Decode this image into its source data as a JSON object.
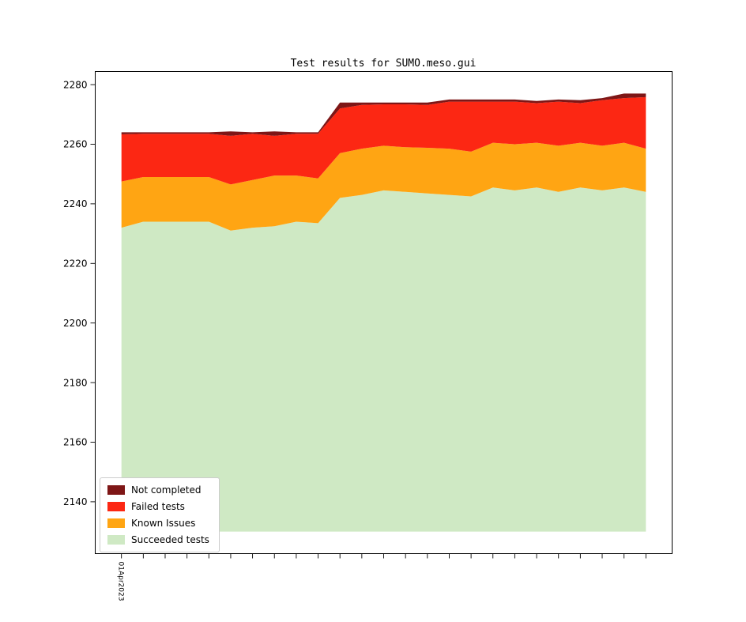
{
  "chart_data": {
    "type": "area",
    "title": "Test results for SUMO.meso.gui",
    "x_tick_label": "01Apr2023",
    "x_count": 25,
    "xlim": [
      -1.2,
      25.2
    ],
    "ylim": [
      2122.6,
      2284.4
    ],
    "yticks": [
      2140,
      2160,
      2180,
      2200,
      2220,
      2240,
      2260,
      2280
    ],
    "baseline": 2130,
    "grid": false,
    "legend_position": "lower left",
    "series": [
      {
        "name": "Not completed",
        "color": "#7e1616",
        "top": [
          2264,
          2264,
          2264,
          2264,
          2264,
          2264.3,
          2264,
          2264.3,
          2264,
          2264,
          2274,
          2274,
          2274,
          2274,
          2274,
          2275,
          2275,
          2275,
          2275,
          2274.5,
          2275,
          2274.8,
          2275.5,
          2277,
          2277
        ]
      },
      {
        "name": "Failed tests",
        "color": "#fc2713",
        "top": [
          2263.3,
          2263.5,
          2263.5,
          2263.5,
          2263.5,
          2262.8,
          2263.5,
          2262.8,
          2263.5,
          2263.5,
          2272,
          2273.2,
          2273.4,
          2273.4,
          2273.2,
          2274.3,
          2274.3,
          2274.3,
          2274.3,
          2273.8,
          2274.3,
          2273.8,
          2274.8,
          2275.5,
          2275.8
        ]
      },
      {
        "name": "Known Issues",
        "color": "#ffa513",
        "top": [
          2247.5,
          2249,
          2249,
          2249,
          2249,
          2246.5,
          2248,
          2249.5,
          2249.5,
          2248.5,
          2257,
          2258.5,
          2259.5,
          2259,
          2258.8,
          2258.5,
          2257.5,
          2260.5,
          2260,
          2260.5,
          2259.5,
          2260.5,
          2259.5,
          2260.5,
          2258.5
        ]
      },
      {
        "name": "Succeeded tests",
        "color": "#cfe9c4",
        "top": [
          2232,
          2234,
          2234,
          2234,
          2234,
          2231,
          2232,
          2232.5,
          2234,
          2233.5,
          2242,
          2243,
          2244.5,
          2244,
          2243.5,
          2243,
          2242.5,
          2245.5,
          2244.5,
          2245.5,
          2244,
          2245.5,
          2244.5,
          2245.5,
          2244
        ]
      }
    ]
  }
}
